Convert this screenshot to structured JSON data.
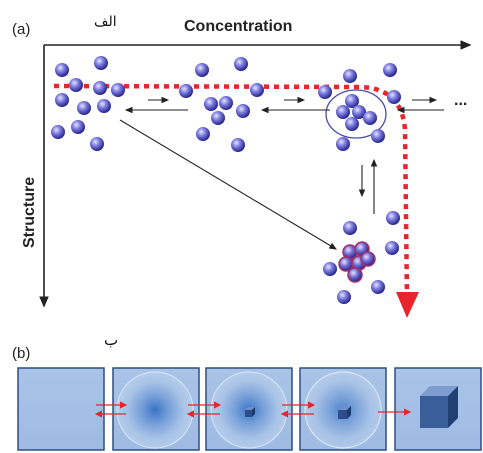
{
  "panel_a": {
    "label": "(a)",
    "arabic_label": "الف",
    "x_axis_label": "Concentration",
    "y_axis_label": "Structure",
    "ellipsis": "..."
  },
  "panel_b": {
    "label": "(b)",
    "arabic_label": "ب"
  },
  "colors": {
    "axis": "#222222",
    "sphere_light": "#c9c9f4",
    "sphere_mid": "#6b6bd6",
    "sphere_dark": "#2b2b8f",
    "pathway_red": "#e8242c",
    "panel_fill": "#a9c4e6",
    "panel_border": "#2f4f7f",
    "cube_front": "#3a5e9a"
  }
}
